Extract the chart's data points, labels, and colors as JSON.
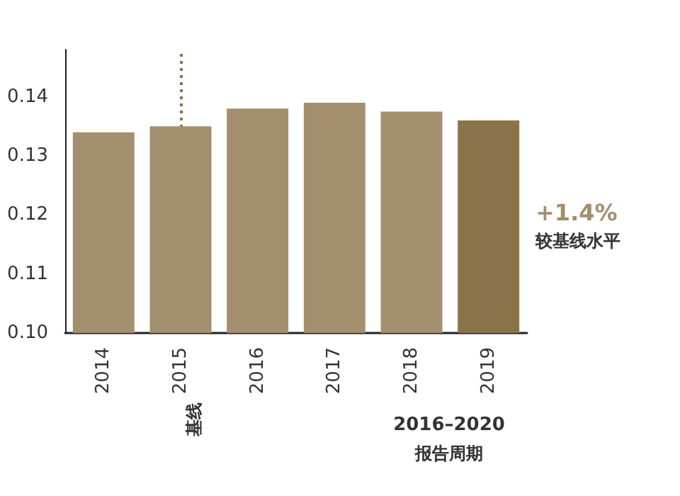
{
  "chart_data": {
    "type": "bar",
    "categories": [
      "2014",
      "2015",
      "2016",
      "2017",
      "2018",
      "2019"
    ],
    "values": [
      0.134,
      0.135,
      0.138,
      0.139,
      0.1375,
      0.136
    ],
    "colors": [
      "#a38e6e",
      "#a38e6e",
      "#a38e6e",
      "#a38e6e",
      "#a38e6e",
      "#8b7349"
    ],
    "ylim": [
      0.1,
      0.148
    ],
    "yticks": [
      {
        "value": 0.1,
        "label": "0.10"
      },
      {
        "value": 0.11,
        "label": "0.11"
      },
      {
        "value": 0.12,
        "label": "0.12"
      },
      {
        "value": 0.13,
        "label": "0.13"
      },
      {
        "value": 0.14,
        "label": "0.14"
      }
    ],
    "grid": false,
    "ref_lines": [
      {
        "axis": "x",
        "value": "2015",
        "color": "#8b7349",
        "line_style": "dotted"
      }
    ],
    "annotations": [
      "基线",
      "2016–2020",
      "报告周期",
      "+1.4%",
      "较基线水平"
    ]
  }
}
